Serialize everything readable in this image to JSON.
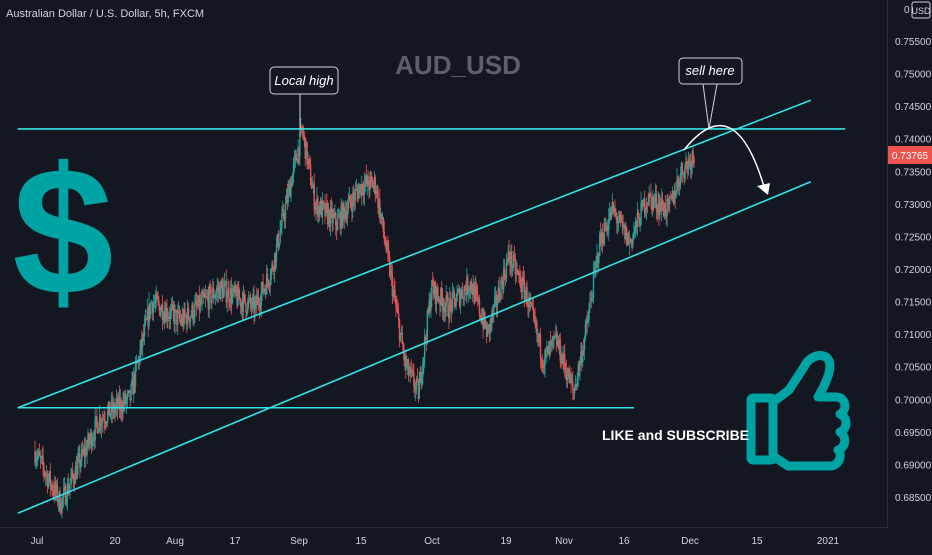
{
  "header": {
    "symbol_title": "Australian Dollar / U.S. Dollar, 5h, FXCM",
    "watermark": "AUD_USD"
  },
  "price_axis": {
    "currency": "USD",
    "labels": [
      "0.75500",
      "0.75000",
      "0.74500",
      "0.74000",
      "0.73500",
      "0.73000",
      "0.72500",
      "0.72000",
      "0.71500",
      "0.71000",
      "0.70500",
      "0.70000",
      "0.69500",
      "0.69000",
      "0.68500"
    ],
    "current_price": "0.73765"
  },
  "time_axis": {
    "labels": [
      "Jul",
      "20",
      "Aug",
      "17",
      "Sep",
      "15",
      "Oct",
      "19",
      "Nov",
      "16",
      "Dec",
      "15",
      "2021"
    ]
  },
  "annotations": {
    "local_high": "Local high",
    "sell_here": "sell here",
    "cta": "LIKE and SUBSCRIBE"
  },
  "icons": {
    "dollar": "dollar-sign-icon",
    "thumbs_up": "thumbs-up-icon"
  },
  "colors": {
    "background": "#131722",
    "teal": "#26A69A",
    "bear": "#EF5350",
    "line": "#2FE6E6",
    "icon_teal": "#00A3A3",
    "price_tag": "#EF5350"
  },
  "chart_data": {
    "type": "candlestick",
    "title": "Australian Dollar / U.S. Dollar, 5h, FXCM",
    "timeframe": "5h",
    "ylim": [
      0.683,
      0.758
    ],
    "current_price": 0.73765,
    "path_points": [
      [
        "2020-07-01",
        0.692
      ],
      [
        "2020-07-07",
        0.684
      ],
      [
        "2020-07-16",
        0.697
      ],
      [
        "2020-07-23",
        0.7
      ],
      [
        "2020-07-28",
        0.715
      ],
      [
        "2020-08-04",
        0.712
      ],
      [
        "2020-08-13",
        0.717
      ],
      [
        "2020-08-21",
        0.714
      ],
      [
        "2020-08-25",
        0.72
      ],
      [
        "2020-09-01",
        0.7413
      ],
      [
        "2020-09-04",
        0.73
      ],
      [
        "2020-09-09",
        0.727
      ],
      [
        "2020-09-15",
        0.733
      ],
      [
        "2020-09-18",
        0.733
      ],
      [
        "2020-09-25",
        0.705
      ],
      [
        "2020-09-28",
        0.701
      ],
      [
        "2020-10-01",
        0.717
      ],
      [
        "2020-10-05",
        0.714
      ],
      [
        "2020-10-10",
        0.718
      ],
      [
        "2020-10-14",
        0.71
      ],
      [
        "2020-10-19",
        0.722
      ],
      [
        "2020-10-23",
        0.716
      ],
      [
        "2020-10-27",
        0.706
      ],
      [
        "2020-10-30",
        0.709
      ],
      [
        "2020-11-03",
        0.701
      ],
      [
        "2020-11-06",
        0.711
      ],
      [
        "2020-11-09",
        0.724
      ],
      [
        "2020-11-12",
        0.729
      ],
      [
        "2020-11-16",
        0.724
      ],
      [
        "2020-11-20",
        0.731
      ],
      [
        "2020-11-25",
        0.729
      ],
      [
        "2020-11-28",
        0.735
      ],
      [
        "2020-12-01",
        0.7377
      ]
    ],
    "lines": [
      {
        "name": "resistance",
        "points": [
          [
            "2020-06-27",
            0.7415
          ],
          [
            "2021-01-05",
            0.7415
          ]
        ]
      },
      {
        "name": "support",
        "points": [
          [
            "2020-06-27",
            0.6987
          ],
          [
            "2020-11-17",
            0.6987
          ]
        ]
      },
      {
        "name": "channel-upper",
        "points": [
          [
            "2020-06-27",
            0.6987
          ],
          [
            "2020-12-28",
            0.7459
          ]
        ]
      },
      {
        "name": "channel-lower",
        "points": [
          [
            "2020-06-27",
            0.6825
          ],
          [
            "2020-12-28",
            0.7334
          ]
        ]
      }
    ],
    "projection": {
      "from": [
        "2020-12-04",
        0.7413
      ],
      "peak": [
        "2020-12-08",
        0.7416
      ],
      "to": [
        "2020-12-18",
        0.731
      ]
    }
  }
}
